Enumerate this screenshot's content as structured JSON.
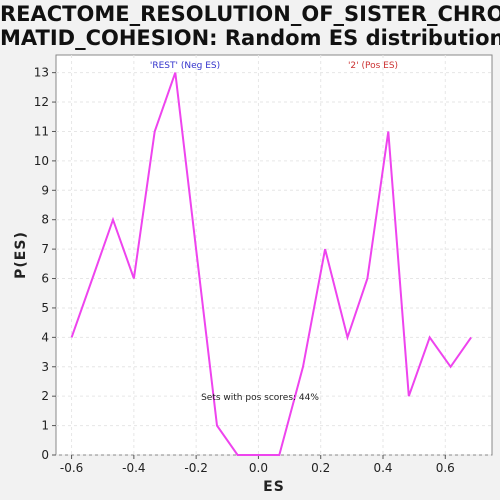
{
  "chart_data": {
    "type": "line",
    "title_lines": [
      "REACTOME_RESOLUTION_OF_SISTER_CHRO",
      "MATID_COHESION: Random ES distribution"
    ],
    "xlabel": "ES",
    "ylabel": "P(ES)",
    "xlim": [
      -0.65,
      0.75
    ],
    "ylim": [
      0,
      13.6
    ],
    "xticks": [
      -0.6,
      -0.4,
      -0.2,
      0.0,
      0.2,
      0.4,
      0.6
    ],
    "xtick_labels": [
      "-0.6",
      "-0.4",
      "-0.2",
      "0.0",
      "0.2",
      "0.4",
      "0.6"
    ],
    "yticks": [
      0,
      1,
      2,
      3,
      4,
      5,
      6,
      7,
      8,
      9,
      10,
      11,
      12,
      13
    ],
    "ytick_labels": [
      "0",
      "1",
      "2",
      "3",
      "4",
      "5",
      "6",
      "7",
      "8",
      "9",
      "10",
      "11",
      "12",
      "13"
    ],
    "grid": true,
    "legend": [
      {
        "label": "'REST' (Neg ES)",
        "color": "#3333cc"
      },
      {
        "label": "'2' (Pos ES)",
        "color": "#cc3333"
      }
    ],
    "annotation": "Sets with pos scores: 44%",
    "series": [
      {
        "color": "#ee44ee",
        "x": [
          -0.6,
          -0.533,
          -0.467,
          -0.4,
          -0.333,
          -0.267,
          -0.2,
          -0.133,
          -0.067,
          0.0,
          0.067,
          0.143,
          0.214,
          0.286,
          0.35,
          0.417,
          0.483,
          0.55,
          0.617,
          0.683
        ],
        "y": [
          4,
          6,
          8,
          6,
          11,
          13,
          7,
          1,
          0,
          0,
          0,
          3,
          7,
          4,
          6,
          11,
          2,
          4,
          3,
          4
        ]
      }
    ]
  }
}
